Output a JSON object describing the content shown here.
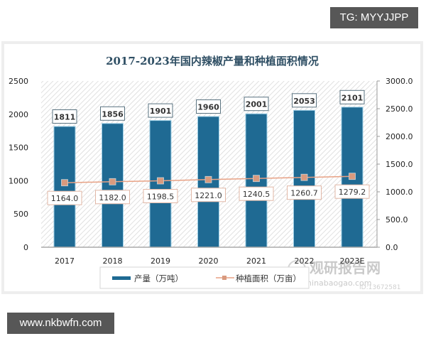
{
  "badges": {
    "top_right": "TG: MYYJJPP",
    "bottom_left": "www.nkbwfn.com"
  },
  "watermark": {
    "cn": "观研报告网",
    "en": "chinabaogao.com",
    "id": "ID:13672581"
  },
  "colors": {
    "bar": "#1f6a93",
    "bar_edge": "#9ecfe6",
    "line": "#e8a184",
    "marker": "#d99a7e",
    "title": "#2f4f64",
    "axis": "#999999"
  },
  "chart_data": {
    "type": "bar",
    "title": "2017-2023年国内辣椒产量和种植面积情况",
    "categories": [
      "2017",
      "2018",
      "2019",
      "2020",
      "2021",
      "2022",
      "2023E"
    ],
    "series": [
      {
        "name": "产量（万吨）",
        "type": "bar",
        "axis": "left",
        "values": [
          1811,
          1856,
          1901,
          1960,
          2001,
          2053,
          2101
        ],
        "labels": [
          "1811",
          "1856",
          "1901",
          "1960",
          "2001",
          "2053",
          "2101"
        ]
      },
      {
        "name": "种植面积（万亩）",
        "type": "line",
        "axis": "right",
        "values": [
          1164.0,
          1182.0,
          1198.5,
          1221.0,
          1240.5,
          1260.7,
          1279.2
        ],
        "labels": [
          "1164.0",
          "1182.0",
          "1198.5",
          "1221.0",
          "1240.5",
          "1260.7",
          "1279.2"
        ]
      }
    ],
    "y_left": {
      "ylim": [
        0,
        2500
      ],
      "ticks": [
        "0",
        "500",
        "1000",
        "1500",
        "2000",
        "2500"
      ]
    },
    "y_right": {
      "ylim": [
        0,
        3000
      ],
      "ticks": [
        "0.0",
        "500.0",
        "1000.0",
        "1500.0",
        "2000.0",
        "2500.0",
        "3000.0"
      ]
    },
    "xlabel": "",
    "ylabel": "",
    "grid": false,
    "legend_position": "bottom"
  }
}
